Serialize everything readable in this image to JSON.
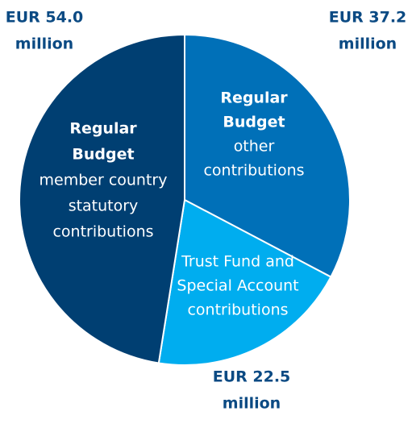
{
  "chart_data": {
    "type": "pie",
    "categories": [
      {
        "title": [
          "Regular",
          "Budget"
        ],
        "detail": [
          "other",
          "contributions"
        ]
      },
      {
        "title": [],
        "detail": [
          "Trust Fund and",
          "Special Account",
          "contributions"
        ]
      },
      {
        "title": [
          "Regular",
          "Budget"
        ],
        "detail": [
          "member country",
          "statutory",
          "contributions"
        ]
      }
    ],
    "values": [
      37.2,
      22.5,
      54.0
    ],
    "value_labels": [
      [
        "EUR 37.2",
        "million"
      ],
      [
        "EUR 22.5",
        "million"
      ],
      [
        "EUR 54.0",
        "million"
      ]
    ],
    "colors": [
      "#0070b8",
      "#00adef",
      "#003f72"
    ]
  }
}
